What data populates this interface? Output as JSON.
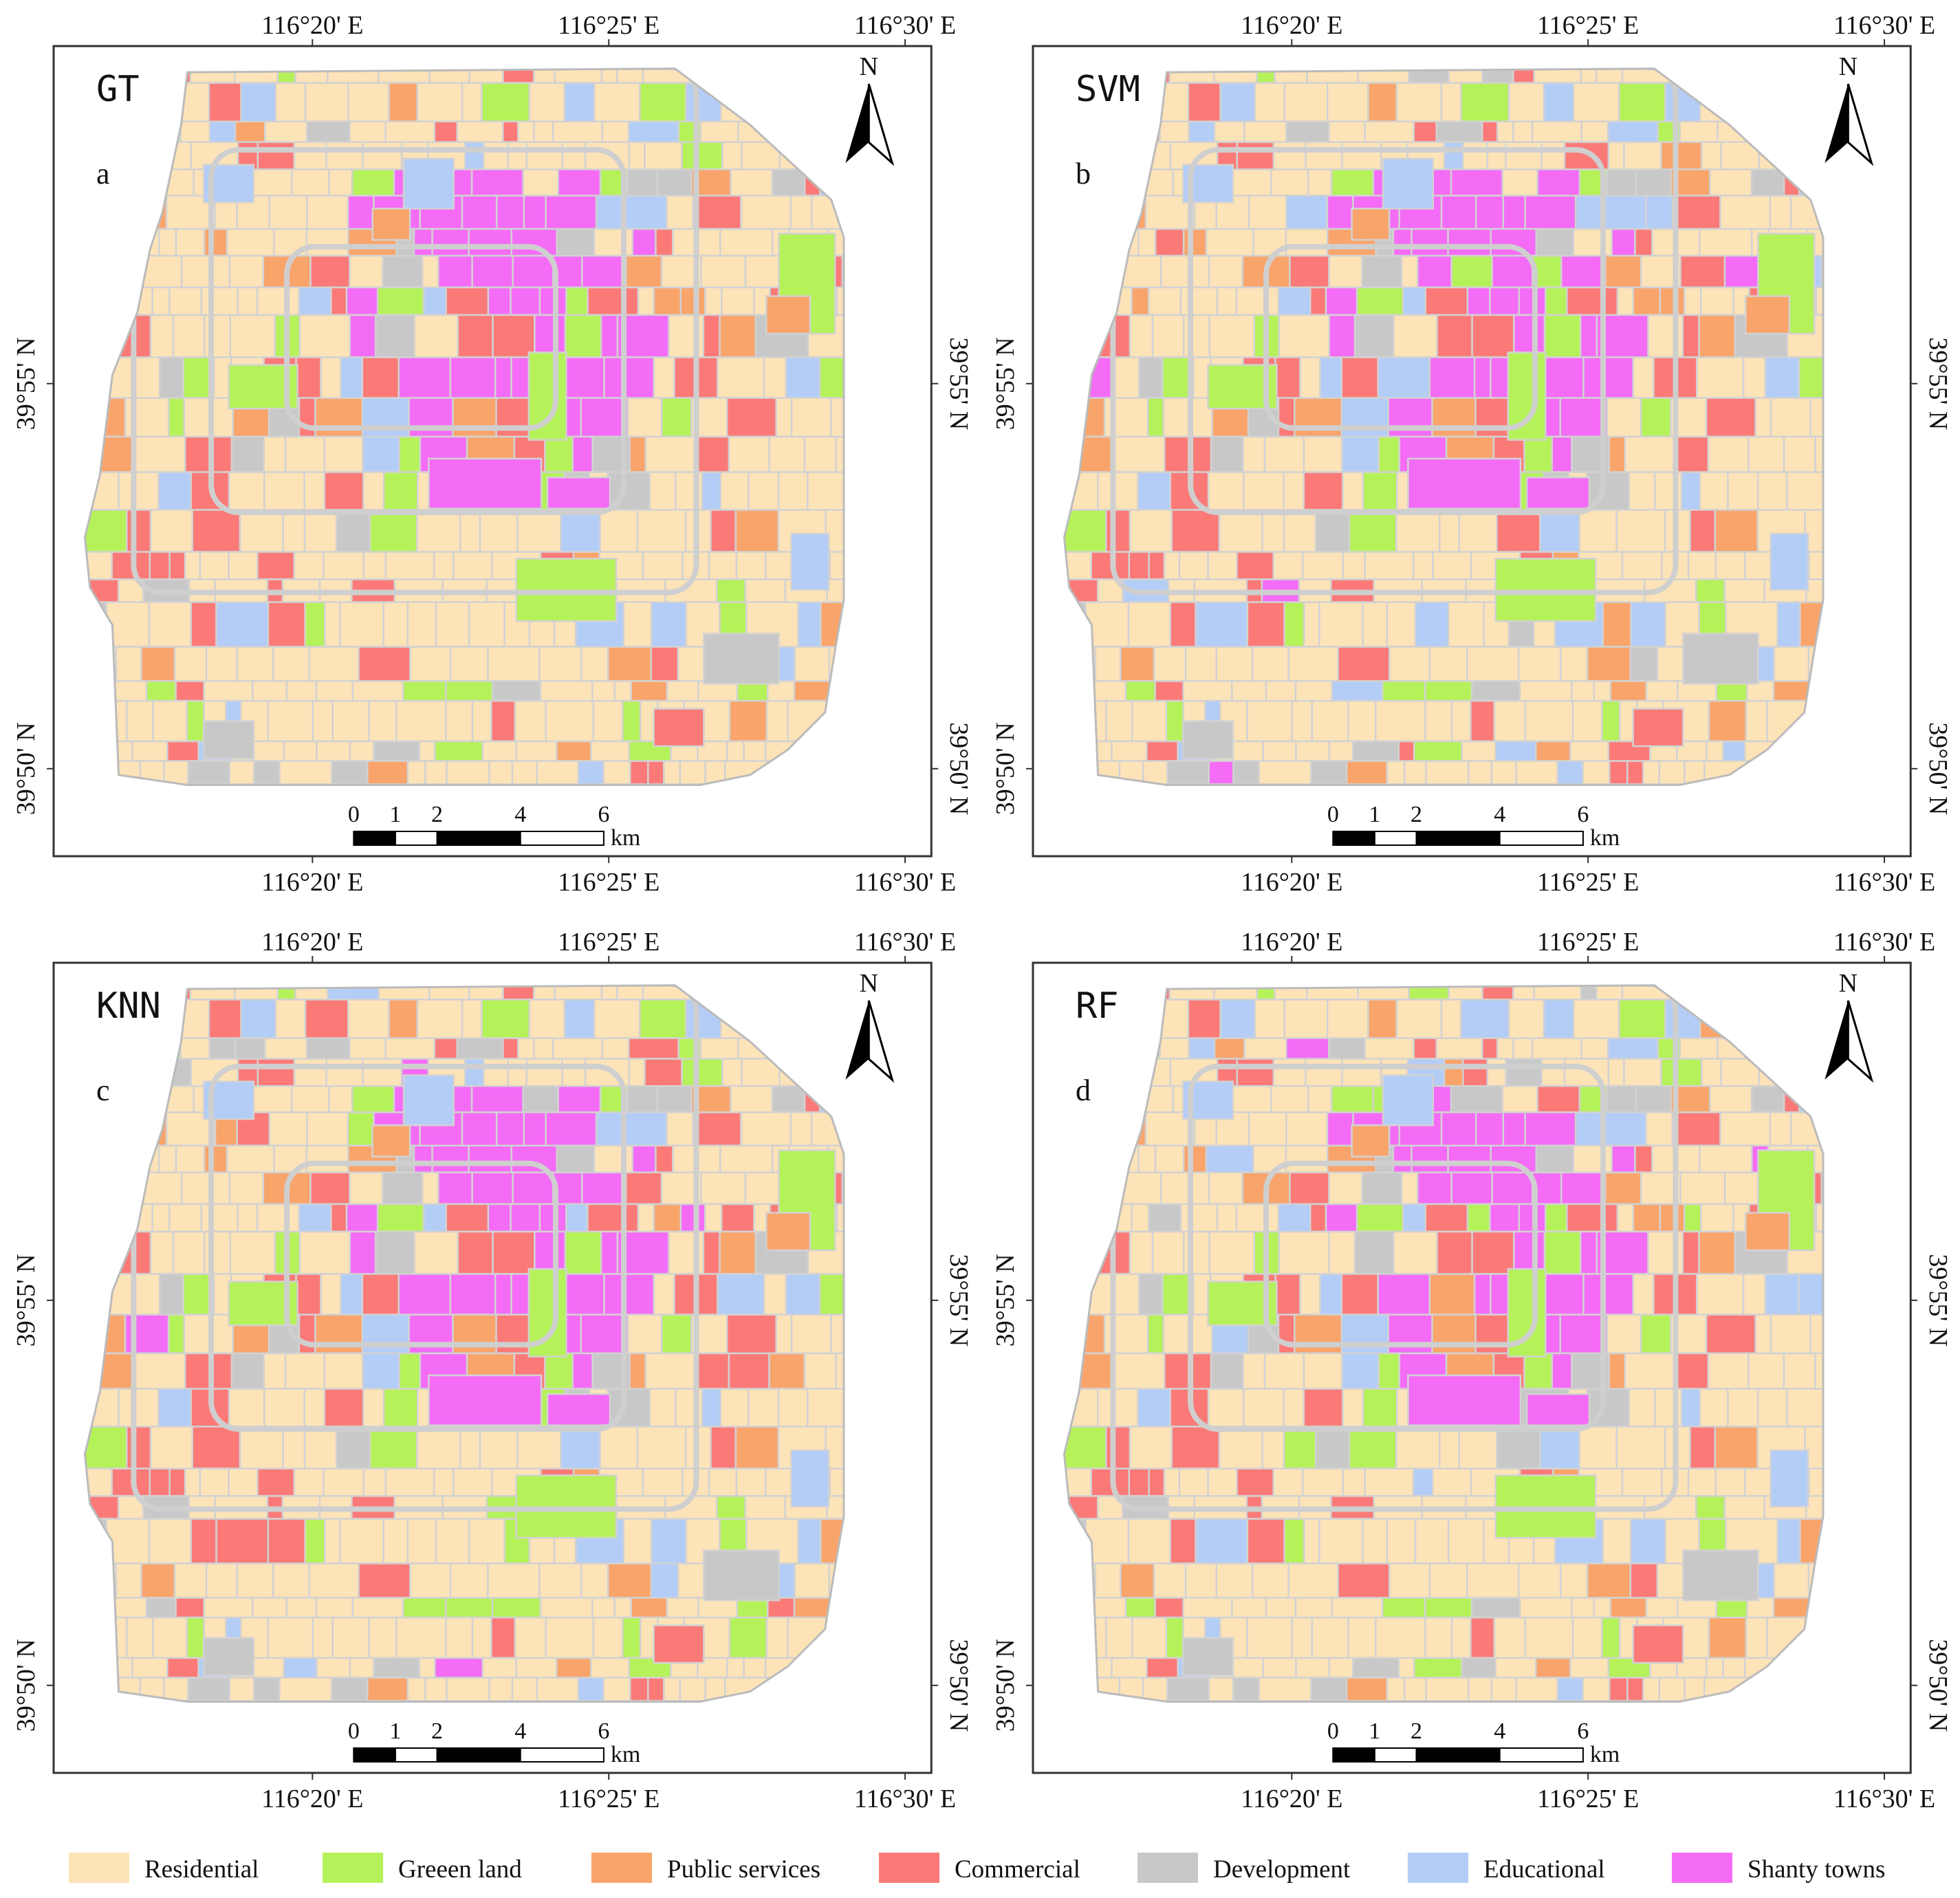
{
  "panels": [
    {
      "title": "GT",
      "letter": "a"
    },
    {
      "title": "SVM",
      "letter": "b"
    },
    {
      "title": "KNN",
      "letter": "c"
    },
    {
      "title": "RF",
      "letter": "d"
    }
  ],
  "axes": {
    "longitude": [
      "116°20' E",
      "116°25' E",
      "116°30' E"
    ],
    "latitude": [
      "39°55' N",
      "39°50' N"
    ]
  },
  "north": "N",
  "scale_bar": {
    "ticks": [
      "0",
      "1",
      "2",
      "4",
      "6"
    ],
    "unit": "km"
  },
  "legend": [
    {
      "label": "Residential",
      "color": "#fde3b8"
    },
    {
      "label": "Greeen land",
      "color": "#b5f25a"
    },
    {
      "label": "Public services",
      "color": "#f9a46b"
    },
    {
      "label": "Commercial",
      "color": "#fb7a78"
    },
    {
      "label": "Development",
      "color": "#c8c8c8"
    },
    {
      "label": "Educational",
      "color": "#b3cdf7"
    },
    {
      "label": "Shanty towns",
      "color": "#f46cf5"
    }
  ]
}
